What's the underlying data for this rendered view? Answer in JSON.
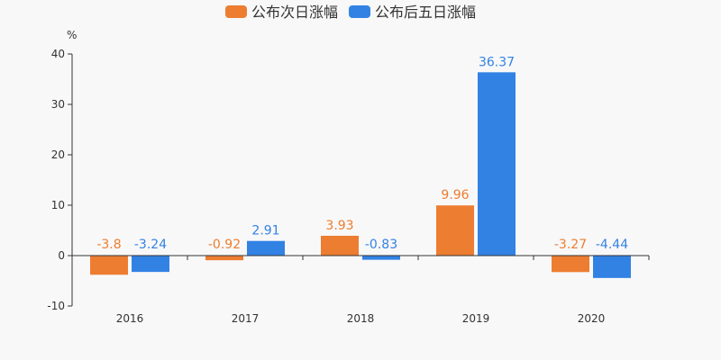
{
  "chart_data": {
    "type": "bar",
    "y_unit": "%",
    "categories": [
      "2016",
      "2017",
      "2018",
      "2019",
      "2020"
    ],
    "series": [
      {
        "name": "公布次日涨幅",
        "color": "#ed7d31",
        "values": [
          -3.8,
          -0.92,
          3.93,
          9.96,
          -3.27
        ]
      },
      {
        "name": "公布后五日涨幅",
        "color": "#3282e4",
        "values": [
          -3.24,
          2.91,
          -0.83,
          36.37,
          -4.44
        ]
      }
    ],
    "ylim": [
      -10,
      40
    ],
    "yticks": [
      -10,
      0,
      10,
      20,
      30,
      40
    ],
    "grid": false,
    "legend": "top-center"
  }
}
